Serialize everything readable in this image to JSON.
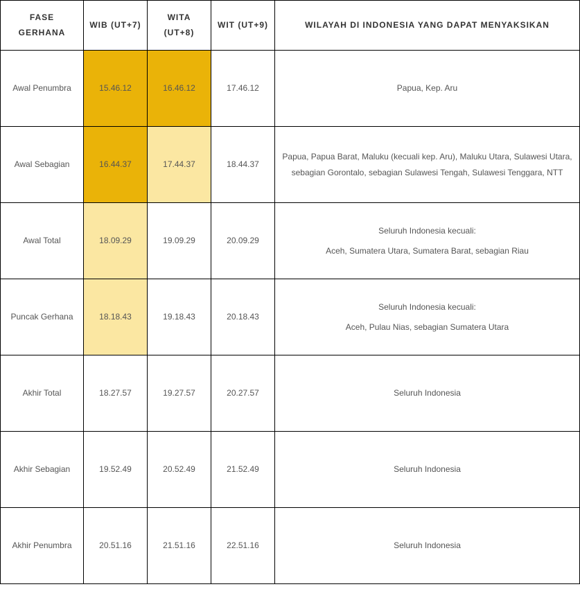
{
  "table": {
    "headers": {
      "phase": "FASE GERHANA",
      "wib": "WIB (UT+7)",
      "wita": "WITA (UT+8)",
      "wit": "WIT (UT+9)",
      "region": "WILAYAH DI INDONESIA YANG DAPAT MENYAKSIKAN"
    },
    "rows": [
      {
        "phase": "Awal Penumbra",
        "wib": "15.46.12",
        "wita": "16.46.12",
        "wit": "17.46.12",
        "region_lines": [
          "Papua, Kep. Aru"
        ],
        "wib_highlight": "highlight-dark",
        "wita_highlight": "highlight-dark",
        "wit_highlight": ""
      },
      {
        "phase": "Awal Sebagian",
        "wib": "16.44.37",
        "wita": "17.44.37",
        "wit": "18.44.37",
        "region_lines": [
          "Papua, Papua Barat, Maluku (kecuali kep. Aru), Maluku Utara, Sulawesi Utara, sebagian Gorontalo, sebagian Sulawesi Tengah, Sulawesi Tenggara, NTT"
        ],
        "wib_highlight": "highlight-dark",
        "wita_highlight": "highlight-light",
        "wit_highlight": ""
      },
      {
        "phase": "Awal Total",
        "wib": "18.09.29",
        "wita": "19.09.29",
        "wit": "20.09.29",
        "region_lines": [
          "Seluruh Indonesia kecuali:",
          "Aceh, Sumatera Utara, Sumatera Barat, sebagian Riau"
        ],
        "wib_highlight": "highlight-light",
        "wita_highlight": "",
        "wit_highlight": ""
      },
      {
        "phase": "Puncak Gerhana",
        "wib": "18.18.43",
        "wita": "19.18.43",
        "wit": "20.18.43",
        "region_lines": [
          "Seluruh Indonesia kecuali:",
          "Aceh, Pulau Nias, sebagian Sumatera Utara"
        ],
        "wib_highlight": "highlight-light",
        "wita_highlight": "",
        "wit_highlight": ""
      },
      {
        "phase": "Akhir Total",
        "wib": "18.27.57",
        "wita": "19.27.57",
        "wit": "20.27.57",
        "region_lines": [
          "Seluruh Indonesia"
        ],
        "wib_highlight": "",
        "wita_highlight": "",
        "wit_highlight": ""
      },
      {
        "phase": "Akhir Sebagian",
        "wib": "19.52.49",
        "wita": "20.52.49",
        "wit": "21.52.49",
        "region_lines": [
          "Seluruh Indonesia"
        ],
        "wib_highlight": "",
        "wita_highlight": "",
        "wit_highlight": ""
      },
      {
        "phase": "Akhir Penumbra",
        "wib": "20.51.16",
        "wita": "21.51.16",
        "wit": "22.51.16",
        "region_lines": [
          "Seluruh Indonesia"
        ],
        "wib_highlight": "",
        "wita_highlight": "",
        "wit_highlight": ""
      }
    ],
    "colors": {
      "highlight_dark": "#eab308",
      "highlight_light": "#fbe7a2",
      "border": "#000000",
      "text": "#555555",
      "header_text": "#333333",
      "background": "#ffffff"
    }
  }
}
